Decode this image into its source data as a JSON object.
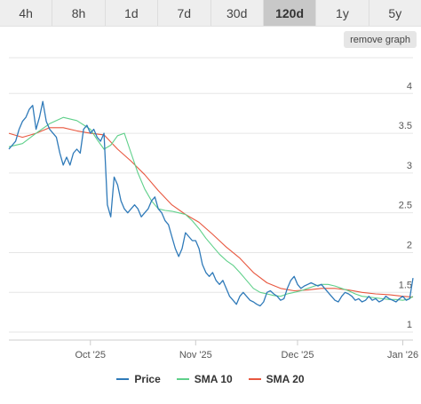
{
  "tabs": [
    {
      "label": "4h",
      "active": false
    },
    {
      "label": "8h",
      "active": false
    },
    {
      "label": "1d",
      "active": false
    },
    {
      "label": "7d",
      "active": false
    },
    {
      "label": "30d",
      "active": false
    },
    {
      "label": "120d",
      "active": true
    },
    {
      "label": "1y",
      "active": false
    },
    {
      "label": "5y",
      "active": false
    }
  ],
  "remove_graph_label": "remove graph",
  "colors": {
    "price": "#2f7ab9",
    "sma10": "#5fd08a",
    "sma20": "#e8573f",
    "grid": "#e6e6e6"
  },
  "chart_data": {
    "type": "line",
    "x_ticks": [
      "Oct '25",
      "Nov '25",
      "Dec '25",
      "Jan '26"
    ],
    "x_tick_days": [
      24,
      55,
      85,
      116
    ],
    "x_range": [
      0,
      119
    ],
    "y_ticks": [
      "1",
      "1.5",
      "2",
      "2.5",
      "3",
      "3.5",
      "4"
    ],
    "ylim": [
      0.9,
      4.45
    ],
    "grid": true,
    "legend": "bottom",
    "series": [
      {
        "name": "Price",
        "color_key": "price",
        "x": [
          0,
          1,
          2,
          3,
          4,
          5,
          6,
          7,
          8,
          9,
          10,
          11,
          12,
          13,
          14,
          15,
          16,
          17,
          18,
          19,
          20,
          21,
          22,
          23,
          24,
          25,
          26,
          27,
          28,
          29,
          30,
          31,
          32,
          33,
          34,
          35,
          36,
          37,
          38,
          39,
          40,
          41,
          42,
          43,
          44,
          45,
          46,
          47,
          48,
          49,
          50,
          51,
          52,
          53,
          54,
          55,
          56,
          57,
          58,
          59,
          60,
          61,
          62,
          63,
          64,
          65,
          66,
          67,
          68,
          69,
          70,
          71,
          72,
          73,
          74,
          75,
          76,
          77,
          78,
          79,
          80,
          81,
          82,
          83,
          84,
          85,
          86,
          87,
          88,
          89,
          90,
          91,
          92,
          93,
          94,
          95,
          96,
          97,
          98,
          99,
          100,
          101,
          102,
          103,
          104,
          105,
          106,
          107,
          108,
          109,
          110,
          111,
          112,
          113,
          114,
          115,
          116,
          117,
          118,
          119
        ],
        "values": [
          3.3,
          3.35,
          3.4,
          3.55,
          3.65,
          3.7,
          3.8,
          3.85,
          3.55,
          3.7,
          3.9,
          3.65,
          3.55,
          3.5,
          3.45,
          3.25,
          3.1,
          3.2,
          3.1,
          3.25,
          3.3,
          3.25,
          3.55,
          3.6,
          3.5,
          3.55,
          3.45,
          3.4,
          3.5,
          2.6,
          2.45,
          2.95,
          2.85,
          2.65,
          2.55,
          2.5,
          2.55,
          2.6,
          2.55,
          2.45,
          2.5,
          2.55,
          2.65,
          2.7,
          2.55,
          2.5,
          2.4,
          2.35,
          2.2,
          2.05,
          1.95,
          2.05,
          2.25,
          2.2,
          2.15,
          2.15,
          2.05,
          1.85,
          1.75,
          1.7,
          1.75,
          1.65,
          1.6,
          1.65,
          1.55,
          1.45,
          1.4,
          1.35,
          1.45,
          1.5,
          1.45,
          1.4,
          1.38,
          1.35,
          1.33,
          1.38,
          1.5,
          1.52,
          1.48,
          1.45,
          1.4,
          1.42,
          1.55,
          1.65,
          1.7,
          1.6,
          1.55,
          1.58,
          1.6,
          1.62,
          1.6,
          1.58,
          1.6,
          1.55,
          1.5,
          1.45,
          1.4,
          1.38,
          1.45,
          1.5,
          1.48,
          1.45,
          1.4,
          1.42,
          1.38,
          1.4,
          1.45,
          1.4,
          1.42,
          1.38,
          1.4,
          1.45,
          1.42,
          1.4,
          1.38,
          1.42,
          1.45,
          1.4,
          1.42,
          1.68
        ]
      },
      {
        "name": "SMA 10",
        "color_key": "sma10",
        "x": [
          0,
          4,
          8,
          12,
          16,
          20,
          24,
          26,
          28,
          30,
          32,
          34,
          36,
          38,
          40,
          42,
          44,
          46,
          48,
          50,
          52,
          54,
          56,
          58,
          60,
          62,
          64,
          66,
          68,
          70,
          72,
          74,
          76,
          78,
          80,
          82,
          84,
          86,
          88,
          90,
          92,
          94,
          96,
          98,
          100,
          102,
          104,
          106,
          108,
          110,
          112,
          114,
          116,
          118,
          119
        ],
        "values": [
          3.33,
          3.37,
          3.5,
          3.62,
          3.7,
          3.66,
          3.55,
          3.42,
          3.3,
          3.35,
          3.47,
          3.5,
          3.25,
          3.0,
          2.8,
          2.65,
          2.55,
          2.53,
          2.52,
          2.5,
          2.48,
          2.4,
          2.3,
          2.18,
          2.08,
          1.98,
          1.9,
          1.84,
          1.75,
          1.65,
          1.55,
          1.5,
          1.48,
          1.46,
          1.45,
          1.48,
          1.5,
          1.52,
          1.55,
          1.58,
          1.6,
          1.6,
          1.58,
          1.55,
          1.52,
          1.48,
          1.45,
          1.44,
          1.43,
          1.42,
          1.41,
          1.41,
          1.4,
          1.42,
          1.45
        ]
      },
      {
        "name": "SMA 20",
        "color_key": "sma20",
        "x": [
          0,
          4,
          8,
          12,
          16,
          20,
          24,
          28,
          32,
          36,
          40,
          44,
          48,
          52,
          56,
          60,
          64,
          68,
          72,
          76,
          80,
          84,
          88,
          92,
          96,
          100,
          104,
          108,
          112,
          116,
          119
        ],
        "values": [
          3.5,
          3.45,
          3.5,
          3.57,
          3.57,
          3.53,
          3.5,
          3.48,
          3.3,
          3.15,
          2.98,
          2.78,
          2.6,
          2.48,
          2.38,
          2.23,
          2.07,
          1.93,
          1.75,
          1.62,
          1.55,
          1.52,
          1.53,
          1.55,
          1.55,
          1.53,
          1.5,
          1.48,
          1.47,
          1.45,
          1.44
        ]
      }
    ]
  }
}
